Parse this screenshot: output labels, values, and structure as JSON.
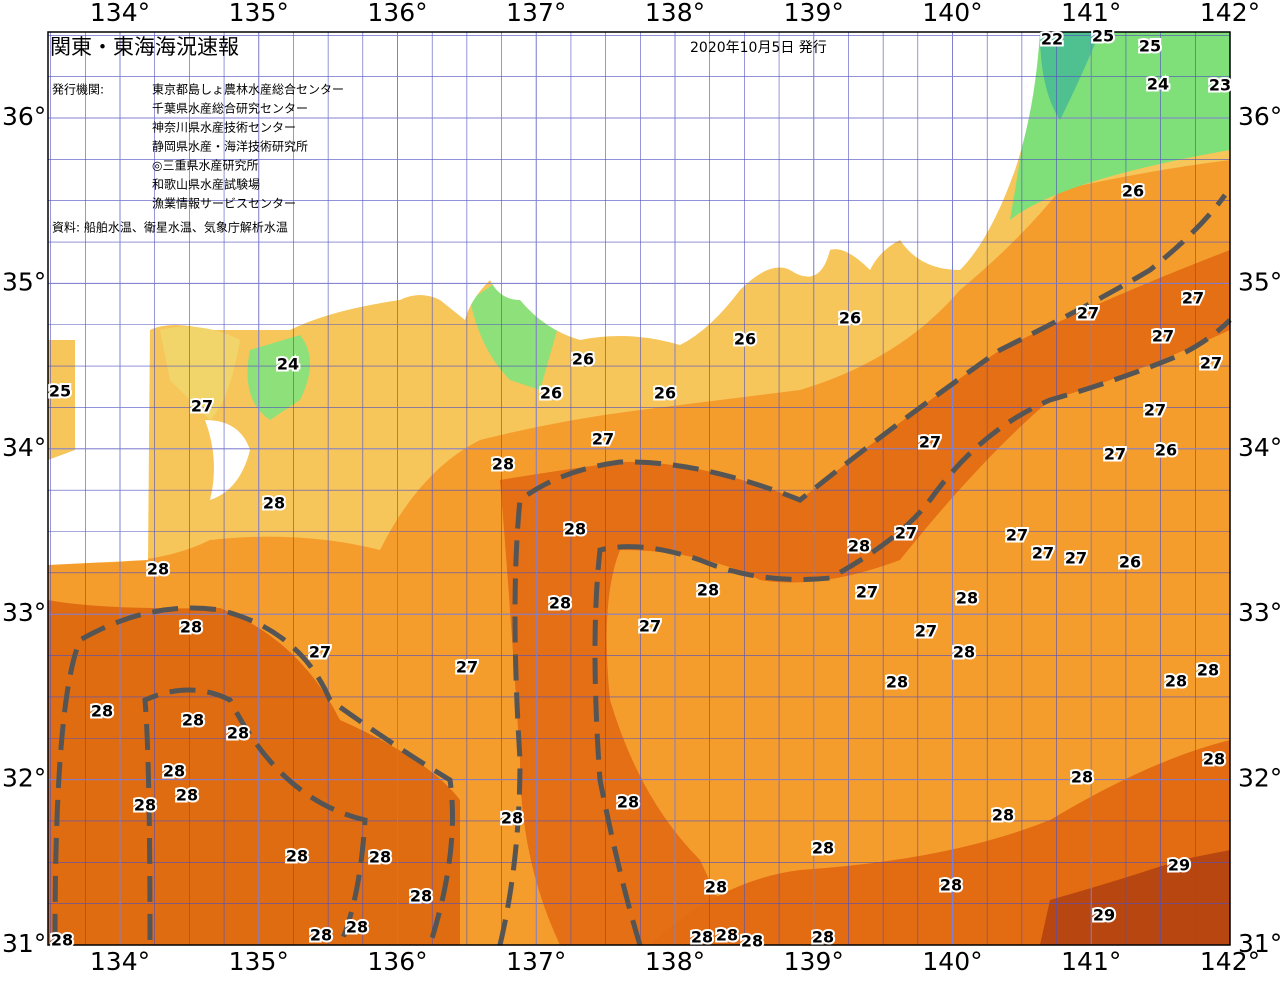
{
  "header": {
    "title": "関東・東海海況速報",
    "date": "2020年10月5日 発行",
    "issuer_label": "発行機関:",
    "issuers": [
      "東京都島しょ農林水産総合センター",
      "千葉県水産総合研究センター",
      "神奈川県水産技術センター",
      "静岡県水産・海洋技術研究所",
      "◎三重県水産研究所",
      "和歌山県水産試験場",
      "漁業情報サービスセンター"
    ],
    "sources": "資料: 船舶水温、衛星水温、気象庁解析水温"
  },
  "map": {
    "lon_ticks": [
      {
        "value": 134,
        "label": "134°"
      },
      {
        "value": 135,
        "label": "135°"
      },
      {
        "value": 136,
        "label": "136°"
      },
      {
        "value": 137,
        "label": "137°"
      },
      {
        "value": 138,
        "label": "138°"
      },
      {
        "value": 139,
        "label": "139°"
      },
      {
        "value": 140,
        "label": "140°"
      },
      {
        "value": 141,
        "label": "141°"
      },
      {
        "value": 142,
        "label": "142°"
      }
    ],
    "lat_ticks": [
      {
        "value": 31,
        "label": "31°"
      },
      {
        "value": 32,
        "label": "32°"
      },
      {
        "value": 33,
        "label": "33°"
      },
      {
        "value": 34,
        "label": "34°"
      },
      {
        "value": 35,
        "label": "35°"
      },
      {
        "value": 36,
        "label": "36°"
      }
    ],
    "sst_labels": [
      22,
      25,
      25,
      24,
      23,
      26,
      27,
      27,
      27,
      27,
      26,
      26,
      26,
      26,
      26,
      24,
      25,
      27,
      27,
      28,
      27,
      27,
      27,
      26,
      28,
      28,
      28,
      27,
      27,
      27,
      27,
      26,
      28,
      28,
      28,
      27,
      28,
      28,
      27,
      27,
      28,
      27,
      27,
      28,
      28,
      28,
      28,
      28,
      28,
      28,
      28,
      28,
      28,
      28,
      28,
      28,
      28,
      28,
      28,
      28,
      29,
      28,
      28,
      28,
      29,
      28,
      28,
      28,
      28,
      28,
      28,
      28
    ]
  }
}
